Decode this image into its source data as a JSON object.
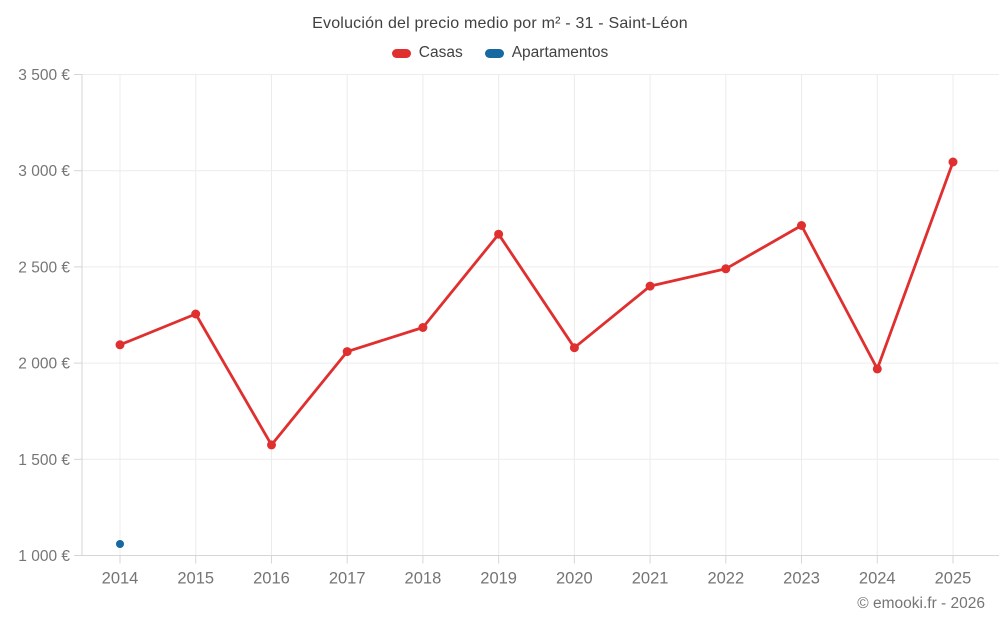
{
  "footer": {
    "copyright": "© emooki.fr - 2026"
  },
  "chart_data": {
    "type": "line",
    "title": "Evolución del precio medio por m² - 31 - Saint-Léon",
    "xlabel": "",
    "ylabel": "",
    "categories": [
      "2014",
      "2015",
      "2016",
      "2017",
      "2018",
      "2019",
      "2020",
      "2021",
      "2022",
      "2023",
      "2024",
      "2025"
    ],
    "series": [
      {
        "name": "Casas",
        "color": "#e02f2f",
        "marker_radius": 4.5,
        "values": [
          2095,
          2255,
          1575,
          2060,
          2185,
          2670,
          2080,
          2400,
          2490,
          2715,
          1970,
          3045
        ]
      },
      {
        "name": "Apartamentos",
        "color": "#1669a0",
        "marker_radius": 4,
        "values": [
          1060,
          null,
          null,
          null,
          null,
          null,
          null,
          null,
          null,
          null,
          null,
          null
        ]
      }
    ],
    "y_ticks": {
      "values": [
        1000,
        1500,
        2000,
        2500,
        3000,
        3500
      ],
      "labels": [
        "1 000 €",
        "1 500 €",
        "2 000 €",
        "2 500 €",
        "3 000 €",
        "3 500 €"
      ]
    },
    "ylim": [
      1000,
      3500
    ],
    "grid": true,
    "grid_color": "#ececec",
    "axis_color": "#d6d6d6",
    "tick_text_color": "#757575",
    "legend_position": "top"
  }
}
